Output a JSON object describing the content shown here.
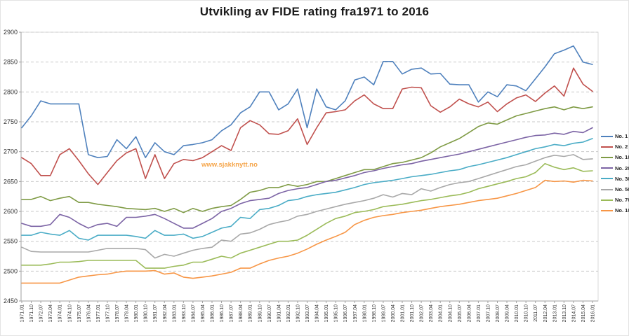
{
  "page": {
    "title": "Utvikling av FIDE rating fra1971 to 2016",
    "watermark": "www.sjakknytt.no"
  },
  "chart_data": {
    "type": "line",
    "title": "Utvikling av FIDE rating fra1971 to 2016",
    "xlabel": "",
    "ylabel": "",
    "ylim": [
      2450,
      2900
    ],
    "yticks": [
      2450,
      2500,
      2550,
      2600,
      2650,
      2700,
      2750,
      2800,
      2850,
      2900
    ],
    "grid": "horizontal-dashed",
    "legend_position": "right",
    "categories": [
      "1971.01",
      "1971.10",
      "1972.07",
      "1973.04",
      "1974.01",
      "1974.10",
      "1975.07",
      "1976.04",
      "1977.01",
      "1977.10",
      "1978.07",
      "1979.04",
      "1980.01",
      "1980.10",
      "1981.07",
      "1982.04",
      "1983.01",
      "1983.10",
      "1984.07",
      "1985.04",
      "1986.01",
      "1986.10",
      "1987.07",
      "1988.04",
      "1989.01",
      "1989.10",
      "1990.07",
      "1991.04",
      "1992.01",
      "1992.10",
      "1993.07",
      "1994.04",
      "1995.01",
      "1995.10",
      "1996.07",
      "1997.04",
      "1998.01",
      "1998.10",
      "1999.07",
      "2000.04",
      "2001.01",
      "2001.10",
      "2002.07",
      "2003.04",
      "2004.01",
      "2004.10",
      "2005.07",
      "2006.04",
      "2007.01",
      "2007.10",
      "2008.07",
      "2009.04",
      "2010.01",
      "2010.10",
      "2011.07",
      "2012.04",
      "2013.01",
      "2013.10",
      "2014.07",
      "2015.04",
      "2016.01"
    ],
    "series": [
      {
        "name": "No. 1",
        "color": "#4f81bd",
        "values": [
          2740,
          2760,
          2785,
          2780,
          2780,
          2780,
          2780,
          2695,
          2690,
          2692,
          2720,
          2705,
          2725,
          2690,
          2715,
          2700,
          2695,
          2710,
          2712,
          2715,
          2720,
          2735,
          2745,
          2765,
          2775,
          2800,
          2800,
          2770,
          2780,
          2805,
          2740,
          2805,
          2775,
          2770,
          2785,
          2820,
          2825,
          2812,
          2851,
          2851,
          2830,
          2838,
          2840,
          2830,
          2831,
          2813,
          2812,
          2812,
          2783,
          2800,
          2792,
          2812,
          2810,
          2802,
          2822,
          2842,
          2864,
          2870,
          2877,
          2850,
          2846
        ]
      },
      {
        "name": "No. 2",
        "color": "#c0504d",
        "values": [
          2690,
          2680,
          2660,
          2660,
          2695,
          2705,
          2685,
          2663,
          2645,
          2665,
          2685,
          2698,
          2705,
          2655,
          2695,
          2655,
          2680,
          2687,
          2685,
          2690,
          2700,
          2710,
          2702,
          2740,
          2752,
          2745,
          2730,
          2729,
          2735,
          2755,
          2712,
          2740,
          2765,
          2767,
          2770,
          2785,
          2795,
          2780,
          2772,
          2772,
          2805,
          2808,
          2807,
          2777,
          2766,
          2775,
          2788,
          2780,
          2775,
          2783,
          2767,
          2780,
          2790,
          2795,
          2784,
          2798,
          2810,
          2793,
          2840,
          2813,
          2801
        ]
      },
      {
        "name": "No. 10",
        "color": "#7f9b45",
        "values": [
          2620,
          2620,
          2625,
          2618,
          2622,
          2625,
          2615,
          2615,
          2612,
          2610,
          2608,
          2605,
          2604,
          2603,
          2605,
          2600,
          2605,
          2598,
          2605,
          2600,
          2605,
          2608,
          2610,
          2620,
          2632,
          2635,
          2640,
          2640,
          2645,
          2642,
          2645,
          2650,
          2650,
          2655,
          2660,
          2665,
          2670,
          2670,
          2675,
          2680,
          2682,
          2686,
          2690,
          2698,
          2708,
          2715,
          2722,
          2732,
          2742,
          2748,
          2746,
          2753,
          2760,
          2764,
          2768,
          2772,
          2775,
          2770,
          2775,
          2772,
          2775
        ]
      },
      {
        "name": "No. 20",
        "color": "#7c64a5",
        "values": [
          2580,
          2575,
          2575,
          2578,
          2595,
          2590,
          2580,
          2572,
          2578,
          2580,
          2575,
          2590,
          2590,
          2592,
          2595,
          2588,
          2580,
          2572,
          2572,
          2580,
          2588,
          2600,
          2605,
          2613,
          2618,
          2620,
          2622,
          2630,
          2635,
          2638,
          2640,
          2645,
          2650,
          2652,
          2656,
          2660,
          2665,
          2668,
          2672,
          2675,
          2678,
          2680,
          2684,
          2687,
          2690,
          2693,
          2696,
          2700,
          2704,
          2708,
          2712,
          2716,
          2720,
          2724,
          2727,
          2728,
          2731,
          2729,
          2734,
          2732,
          2740
        ]
      },
      {
        "name": "No. 30",
        "color": "#4aacc6",
        "values": [
          2560,
          2560,
          2565,
          2562,
          2560,
          2568,
          2555,
          2552,
          2560,
          2560,
          2560,
          2560,
          2558,
          2555,
          2568,
          2560,
          2560,
          2562,
          2555,
          2558,
          2565,
          2572,
          2575,
          2590,
          2588,
          2603,
          2605,
          2610,
          2618,
          2620,
          2625,
          2628,
          2630,
          2632,
          2636,
          2640,
          2645,
          2648,
          2650,
          2652,
          2655,
          2658,
          2660,
          2662,
          2665,
          2668,
          2670,
          2675,
          2678,
          2682,
          2686,
          2690,
          2695,
          2700,
          2705,
          2708,
          2712,
          2710,
          2714,
          2716,
          2722
        ]
      },
      {
        "name": "No. 50",
        "color": "#a8a8a8",
        "values": [
          2540,
          2533,
          2532,
          2532,
          2532,
          2532,
          2532,
          2532,
          2535,
          2538,
          2538,
          2538,
          2538,
          2536,
          2522,
          2528,
          2525,
          2530,
          2535,
          2538,
          2540,
          2552,
          2550,
          2562,
          2564,
          2570,
          2578,
          2582,
          2585,
          2592,
          2595,
          2600,
          2604,
          2608,
          2612,
          2615,
          2618,
          2622,
          2628,
          2624,
          2630,
          2628,
          2638,
          2634,
          2640,
          2645,
          2648,
          2650,
          2655,
          2660,
          2665,
          2670,
          2675,
          2678,
          2684,
          2690,
          2694,
          2692,
          2695,
          2687,
          2688
        ]
      },
      {
        "name": "No. 70",
        "color": "#9bbb59",
        "values": [
          2510,
          2510,
          2510,
          2512,
          2515,
          2515,
          2516,
          2518,
          2518,
          2518,
          2518,
          2518,
          2518,
          2505,
          2505,
          2505,
          2508,
          2510,
          2515,
          2515,
          2520,
          2525,
          2522,
          2530,
          2535,
          2540,
          2545,
          2550,
          2550,
          2552,
          2560,
          2570,
          2580,
          2588,
          2592,
          2598,
          2600,
          2603,
          2608,
          2610,
          2612,
          2615,
          2618,
          2620,
          2623,
          2626,
          2628,
          2632,
          2638,
          2642,
          2646,
          2650,
          2655,
          2658,
          2665,
          2680,
          2674,
          2670,
          2673,
          2667,
          2668
        ]
      },
      {
        "name": "No. 100",
        "color": "#f79646",
        "values": [
          2480,
          2480,
          2480,
          2480,
          2480,
          2485,
          2490,
          2492,
          2494,
          2495,
          2498,
          2500,
          2500,
          2500,
          2501,
          2495,
          2497,
          2490,
          2488,
          2490,
          2492,
          2495,
          2498,
          2505,
          2505,
          2512,
          2518,
          2522,
          2525,
          2530,
          2537,
          2545,
          2552,
          2558,
          2565,
          2578,
          2585,
          2590,
          2593,
          2595,
          2598,
          2600,
          2602,
          2605,
          2608,
          2610,
          2612,
          2615,
          2618,
          2620,
          2622,
          2626,
          2630,
          2635,
          2640,
          2652,
          2650,
          2651,
          2649,
          2652,
          2651
        ]
      }
    ]
  },
  "style": {
    "gridline_color": "#c9c9c9",
    "axis_color": "#9f9f9f",
    "border_color": "#d9d9d9",
    "tick_label_color": "#333333"
  }
}
